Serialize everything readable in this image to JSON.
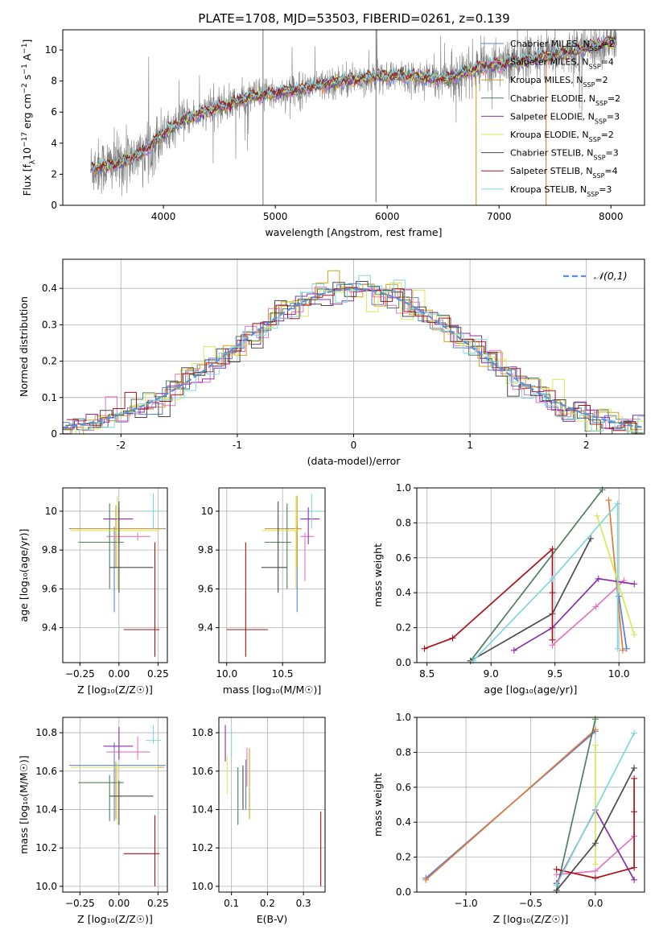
{
  "figure_title": "PLATE=1708, MJD=53503, FIBERID=0261, z=0.139",
  "colors": {
    "Chabrier MILES": "#5b7fd6",
    "Salpeter MILES": "#e377c2",
    "Kroupa MILES": "#d4a020",
    "Chabrier ELODIE": "#4f7f5f",
    "Salpeter ELODIE": "#8b2fa8",
    "Kroupa ELODIE": "#d8e85a",
    "Chabrier STELIB": "#4a4a4a",
    "Salpeter STELIB": "#a8141c",
    "Kroupa STELIB": "#7fd8dc",
    "orange": "#e07b39",
    "data": "#808080",
    "gauss": "#5b8fd6"
  },
  "chart_data": [
    {
      "id": "spectrum",
      "type": "line",
      "xlabel": "wavelength [Angstrom, rest frame]",
      "ylabel_parts": [
        "Flux [f",
        "λ",
        "10",
        "−17",
        " erg cm",
        "−2",
        " s",
        "−1",
        " A",
        "−1",
        "]"
      ],
      "xlim": [
        3100,
        8300
      ],
      "ylim": [
        0,
        11.3
      ],
      "xticks": [
        4000,
        5000,
        6000,
        7000,
        8000
      ],
      "yticks": [
        0,
        2,
        4,
        6,
        8,
        10
      ],
      "grid": false,
      "legend_position": "top-right",
      "legend": [
        {
          "label": "Chabrier MILES, N",
          "sub": "SSP",
          "suffix": "=2",
          "color_key": "Chabrier MILES"
        },
        {
          "label": "Salpeter MILES, N",
          "sub": "SSP",
          "suffix": "=4",
          "color_key": "Salpeter MILES"
        },
        {
          "label": "Kroupa MILES, N",
          "sub": "SSP",
          "suffix": "=2",
          "color_key": "Kroupa MILES"
        },
        {
          "label": "Chabrier ELODIE, N",
          "sub": "SSP",
          "suffix": "=2",
          "color_key": "Chabrier ELODIE"
        },
        {
          "label": "Salpeter ELODIE, N",
          "sub": "SSP",
          "suffix": "=3",
          "color_key": "Salpeter ELODIE"
        },
        {
          "label": "Kroupa ELODIE, N",
          "sub": "SSP",
          "suffix": "=2",
          "color_key": "Kroupa ELODIE"
        },
        {
          "label": "Chabrier STELIB, N",
          "sub": "SSP",
          "suffix": "=3",
          "color_key": "Chabrier STELIB"
        },
        {
          "label": "Salpeter STELIB, N",
          "sub": "SSP",
          "suffix": "=4",
          "color_key": "Salpeter STELIB"
        },
        {
          "label": "Kroupa STELIB, N",
          "sub": "SSP",
          "suffix": "=3",
          "color_key": "Kroupa STELIB"
        }
      ],
      "continuum": {
        "x": [
          3350,
          3600,
          3800,
          4000,
          4200,
          4500,
          4800,
          5000,
          5300,
          5600,
          5900,
          6200,
          6500,
          6800,
          7000,
          7300,
          7600,
          8050
        ],
        "y": [
          2.4,
          2.7,
          3.3,
          4.6,
          5.6,
          6.3,
          7.0,
          7.2,
          7.6,
          8.0,
          8.3,
          8.3,
          8.1,
          8.8,
          9.1,
          9.4,
          9.8,
          10.6
        ]
      },
      "vlines": [
        {
          "x": 4890,
          "y0": 0,
          "y1": 11.3,
          "color_key": "data"
        },
        {
          "x": 5900,
          "y0": 0.2,
          "y1": 11.3,
          "color_key": "data"
        },
        {
          "x": 6795,
          "y0": 0,
          "y1": 8.4,
          "color_key": "Kroupa MILES"
        },
        {
          "x": 7420,
          "y0": 0,
          "y1": 9.8,
          "color_key": "orange"
        }
      ]
    },
    {
      "id": "residuals",
      "type": "histogram",
      "xlabel": "(data-model)/error",
      "ylabel": "Normed distribution",
      "xlim": [
        -2.5,
        2.5
      ],
      "ylim": [
        0,
        0.48
      ],
      "xticks": [
        -2,
        -1,
        0,
        1,
        2
      ],
      "yticks": [
        0,
        0.1,
        0.2,
        0.3,
        0.4
      ],
      "grid": true,
      "legend_position": "top-right",
      "legend_label": "𝒩(0,1)",
      "gauss": {
        "mu": 0,
        "sigma": 1
      }
    },
    {
      "id": "age_vs_Z",
      "type": "errorbar",
      "xlabel": "Z [log₁₀(Z/Z☉)]",
      "ylabel": "age  [log₁₀(age/yr)]",
      "xlim": [
        -0.36,
        0.31
      ],
      "ylim": [
        9.22,
        10.12
      ],
      "xticks": [
        -0.25,
        0.0,
        0.25
      ],
      "xticklabels": [
        "−0.25",
        "0.00",
        "0.25"
      ],
      "yticks": [
        9.4,
        9.6,
        9.8,
        10.0
      ],
      "grid": true,
      "points": [
        {
          "key": "Chabrier MILES",
          "x": -0.03,
          "xerr": [
            0.29,
            0.33
          ],
          "y": 9.91,
          "yerr": [
            0.43,
            0.01
          ]
        },
        {
          "key": "Salpeter MILES",
          "x": 0.12,
          "xerr": [
            0.2,
            0.08
          ],
          "y": 9.87,
          "yerr": [
            0.02,
            0.02
          ]
        },
        {
          "key": "Kroupa MILES",
          "x": -0.02,
          "xerr": [
            0.29,
            0.31
          ],
          "y": 9.91,
          "yerr": [
            0.2,
            0.12
          ]
        },
        {
          "key": "Chabrier ELODIE",
          "x": -0.06,
          "xerr": [
            0.2,
            0.09
          ],
          "y": 9.84,
          "yerr": [
            0.24,
            0.2
          ]
        },
        {
          "key": "Salpeter ELODIE",
          "x": 0.0,
          "xerr": [
            0.1,
            0.09
          ],
          "y": 9.96,
          "yerr": [
            0.13,
            0.06
          ]
        },
        {
          "key": "Kroupa ELODIE",
          "x": -0.01,
          "xerr": [
            0.3,
            0.26
          ],
          "y": 9.9,
          "yerr": [
            0.3,
            0.18
          ]
        },
        {
          "key": "Chabrier STELIB",
          "x": 0.0,
          "xerr": [
            0.06,
            0.22
          ],
          "y": 9.71,
          "yerr": [
            0.13,
            0.34
          ]
        },
        {
          "key": "Salpeter STELIB",
          "x": 0.23,
          "xerr": [
            0.2,
            0.03
          ],
          "y": 9.39,
          "yerr": [
            0.14,
            0.45
          ]
        },
        {
          "key": "Kroupa STELIB",
          "x": 0.22,
          "xerr": [
            0.05,
            0.05
          ],
          "y": 10.0,
          "yerr": [
            0.09,
            0.09
          ]
        }
      ]
    },
    {
      "id": "age_vs_mass",
      "type": "errorbar",
      "xlabel": "mass [log₁₀(M/M☉)]",
      "ylabel": "",
      "xlim": [
        9.93,
        10.88
      ],
      "ylim": [
        9.22,
        10.12
      ],
      "xticks": [
        10.0,
        10.5
      ],
      "xticklabels": [
        "10.0",
        "10.5"
      ],
      "yticks": [
        9.4,
        9.6,
        9.8,
        10.0
      ],
      "grid": true,
      "points": [
        {
          "key": "Chabrier MILES",
          "x": 10.63,
          "xerr": [
            0.29,
            0.04
          ],
          "y": 9.91,
          "yerr": [
            0.43,
            0.01
          ]
        },
        {
          "key": "Salpeter MILES",
          "x": 10.7,
          "xerr": [
            0.04,
            0.08
          ],
          "y": 9.87,
          "yerr": [
            0.23,
            0.02
          ]
        },
        {
          "key": "Kroupa MILES",
          "x": 10.63,
          "xerr": [
            0.29,
            0.04
          ],
          "y": 9.91,
          "yerr": [
            0.2,
            0.17
          ]
        },
        {
          "key": "Chabrier ELODIE",
          "x": 10.54,
          "xerr": [
            0.2,
            0.04
          ],
          "y": 9.84,
          "yerr": [
            0.24,
            0.2
          ]
        },
        {
          "key": "Salpeter ELODIE",
          "x": 10.73,
          "xerr": [
            0.07,
            0.1
          ],
          "y": 9.96,
          "yerr": [
            0.13,
            0.06
          ]
        },
        {
          "key": "Kroupa ELODIE",
          "x": 10.62,
          "xerr": [
            0.3,
            0.02
          ],
          "y": 9.9,
          "yerr": [
            0.3,
            0.18
          ]
        },
        {
          "key": "Chabrier STELIB",
          "x": 10.46,
          "xerr": [
            0.15,
            0.08
          ],
          "y": 9.71,
          "yerr": [
            0.13,
            0.34
          ]
        },
        {
          "key": "Salpeter STELIB",
          "x": 10.17,
          "xerr": [
            0.17,
            0.2
          ],
          "y": 9.39,
          "yerr": [
            0.14,
            0.45
          ]
        },
        {
          "key": "Kroupa STELIB",
          "x": 10.76,
          "xerr": [
            0.02,
            0.08
          ],
          "y": 10.0,
          "yerr": [
            0.09,
            0.09
          ]
        }
      ]
    },
    {
      "id": "mass_weight_vs_age",
      "type": "line",
      "xlabel": "age  [log₁₀(age/yr)]",
      "ylabel": "mass weight",
      "xlim": [
        8.42,
        10.2
      ],
      "ylim": [
        0,
        1
      ],
      "xticks": [
        8.5,
        9.0,
        9.5,
        10.0
      ],
      "xticklabels": [
        "8.5",
        "9.0",
        "9.5",
        "10.0"
      ],
      "yticks": [
        0,
        0.2,
        0.4,
        0.6,
        0.8,
        1.0
      ],
      "yticklabels": [
        "0.0",
        "0.2",
        "0.4",
        "0.6",
        "0.8",
        "1.0"
      ],
      "grid": true,
      "series": [
        {
          "key": "Salpeter MILES",
          "x": [
            9.48,
            9.82,
            10.04
          ],
          "y": [
            0.1,
            0.32,
            0.47
          ]
        },
        {
          "key": "Chabrier MILES",
          "x": [
            10.0,
            10.06
          ],
          "y": [
            0.38,
            0.08
          ]
        },
        {
          "key": "orange",
          "x": [
            9.92,
            10.03
          ],
          "y": [
            0.93,
            0.07
          ]
        },
        {
          "key": "Chabrier ELODIE",
          "x": [
            8.84,
            9.87
          ],
          "y": [
            0.01,
            0.99
          ]
        },
        {
          "key": "Salpeter ELODIE",
          "x": [
            9.18,
            9.48,
            9.84,
            10.12
          ],
          "y": [
            0.07,
            0.2,
            0.48,
            0.45
          ]
        },
        {
          "key": "Kroupa ELODIE",
          "x": [
            9.83,
            10.12
          ],
          "y": [
            0.84,
            0.16
          ]
        },
        {
          "key": "Chabrier STELIB",
          "x": [
            8.84,
            9.48,
            9.78
          ],
          "y": [
            0.01,
            0.28,
            0.71
          ]
        },
        {
          "key": "Salpeter STELIB",
          "x": [
            8.48,
            8.7,
            9.48,
            9.48,
            9.48
          ],
          "y": [
            0.08,
            0.14,
            0.65,
            0.4,
            0.13
          ]
        },
        {
          "key": "Kroupa STELIB",
          "x": [
            8.86,
            9.48,
            9.99,
            9.99
          ],
          "y": [
            0.01,
            0.48,
            0.91,
            0.08
          ]
        }
      ]
    },
    {
      "id": "mass_vs_Z",
      "type": "errorbar",
      "xlabel": "Z [log₁₀(Z/Z☉)]",
      "ylabel": "mass [log₁₀(M/M☉)]",
      "xlim": [
        -0.36,
        0.31
      ],
      "ylim": [
        9.97,
        10.88
      ],
      "xticks": [
        -0.25,
        0.0,
        0.25
      ],
      "xticklabels": [
        "−0.25",
        "0.00",
        "0.25"
      ],
      "yticks": [
        10.0,
        10.2,
        10.4,
        10.6,
        10.8
      ],
      "yticklabels": [
        "10.0",
        "10.2",
        "10.4",
        "10.6",
        "10.8"
      ],
      "grid": true,
      "points": [
        {
          "key": "Chabrier MILES",
          "x": -0.03,
          "xerr": [
            0.29,
            0.33
          ],
          "y": 10.63,
          "yerr": [
            0.29,
            0.12
          ]
        },
        {
          "key": "Salpeter MILES",
          "x": 0.12,
          "xerr": [
            0.2,
            0.08
          ],
          "y": 10.7,
          "yerr": [
            0.04,
            0.08
          ]
        },
        {
          "key": "Kroupa MILES",
          "x": -0.02,
          "xerr": [
            0.29,
            0.31
          ],
          "y": 10.62,
          "yerr": [
            0.27,
            0.03
          ]
        },
        {
          "key": "Chabrier ELODIE",
          "x": -0.06,
          "xerr": [
            0.2,
            0.09
          ],
          "y": 10.54,
          "yerr": [
            0.2,
            0.04
          ]
        },
        {
          "key": "Salpeter ELODIE",
          "x": 0.0,
          "xerr": [
            0.1,
            0.09
          ],
          "y": 10.73,
          "yerr": [
            0.07,
            0.1
          ]
        },
        {
          "key": "Kroupa ELODIE",
          "x": -0.01,
          "xerr": [
            0.3,
            0.26
          ],
          "y": 10.62,
          "yerr": [
            0.3,
            0.02
          ]
        },
        {
          "key": "Chabrier STELIB",
          "x": 0.0,
          "xerr": [
            0.06,
            0.22
          ],
          "y": 10.47,
          "yerr": [
            0.15,
            0.08
          ]
        },
        {
          "key": "Salpeter STELIB",
          "x": 0.23,
          "xerr": [
            0.2,
            0.03
          ],
          "y": 10.17,
          "yerr": [
            0.17,
            0.2
          ]
        },
        {
          "key": "Kroupa STELIB",
          "x": 0.22,
          "xerr": [
            0.05,
            0.05
          ],
          "y": 10.76,
          "yerr": [
            0.02,
            0.08
          ]
        }
      ]
    },
    {
      "id": "mass_vs_ebv",
      "type": "errorbar",
      "xlabel": "E(B-V)",
      "ylabel": "",
      "xlim": [
        0.065,
        0.36
      ],
      "ylim": [
        9.97,
        10.88
      ],
      "xticks": [
        0.1,
        0.2,
        0.3
      ],
      "xticklabels": [
        "0.1",
        "0.2",
        "0.3"
      ],
      "yticks": [
        10.0,
        10.2,
        10.4,
        10.6,
        10.8
      ],
      "yticklabels": [
        "10.0",
        "10.2",
        "10.4",
        "10.6",
        "10.8"
      ],
      "grid": true,
      "points": [
        {
          "key": "Salpeter ELODIE",
          "x": 0.083,
          "xerr": [
            0,
            0
          ],
          "y": 10.73,
          "yerr": [
            0.08,
            0.11
          ]
        },
        {
          "key": "Kroupa ELODIE",
          "x": 0.088,
          "xerr": [
            0,
            0
          ],
          "y": 10.62,
          "yerr": [
            0.14,
            0.06
          ]
        },
        {
          "key": "Kroupa STELIB",
          "x": 0.1,
          "xerr": [
            0,
            0
          ],
          "y": 10.76,
          "yerr": [
            0.09,
            0.06
          ]
        },
        {
          "key": "Chabrier ELODIE",
          "x": 0.118,
          "xerr": [
            0,
            0
          ],
          "y": 10.54,
          "yerr": [
            0.22,
            0.08
          ]
        },
        {
          "key": "Chabrier STELIB",
          "x": 0.132,
          "xerr": [
            0,
            0
          ],
          "y": 10.46,
          "yerr": [
            0.06,
            0.17
          ]
        },
        {
          "key": "Chabrier MILES",
          "x": 0.14,
          "xerr": [
            0,
            0
          ],
          "y": 10.63,
          "yerr": [
            0.23,
            0.03
          ]
        },
        {
          "key": "Salpeter MILES",
          "x": 0.143,
          "xerr": [
            0,
            0
          ],
          "y": 10.62,
          "yerr": [
            0.1,
            0.1
          ]
        },
        {
          "key": "Kroupa MILES",
          "x": 0.15,
          "xerr": [
            0,
            0
          ],
          "y": 10.54,
          "yerr": [
            0.19,
            0.18
          ]
        },
        {
          "key": "Salpeter STELIB",
          "x": 0.348,
          "xerr": [
            0,
            0
          ],
          "y": 10.2,
          "yerr": [
            0.2,
            0.19
          ]
        }
      ]
    },
    {
      "id": "mass_weight_vs_Z",
      "type": "line",
      "xlabel": "Z [log₁₀(Z/Z☉)]",
      "ylabel": "mass weight",
      "xlim": [
        -1.38,
        0.38
      ],
      "ylim": [
        0,
        1
      ],
      "xticks": [
        -1.0,
        -0.5,
        0.0
      ],
      "xticklabels": [
        "−1.0",
        "−0.5",
        "0.0"
      ],
      "yticks": [
        0,
        0.2,
        0.4,
        0.6,
        0.8,
        1.0
      ],
      "yticklabels": [
        "0.0",
        "0.2",
        "0.4",
        "0.6",
        "0.8",
        "1.0"
      ],
      "grid": true,
      "series": [
        {
          "key": "Chabrier MILES",
          "x": [
            -1.31,
            0.0
          ],
          "y": [
            0.08,
            0.92
          ]
        },
        {
          "key": "orange",
          "x": [
            -1.31,
            0.0
          ],
          "y": [
            0.07,
            0.93
          ]
        },
        {
          "key": "Salpeter MILES",
          "x": [
            -0.3,
            0.0,
            0.3
          ],
          "y": [
            0.1,
            0.12,
            0.32
          ]
        },
        {
          "key": "Chabrier ELODIE",
          "x": [
            -0.3,
            0.0
          ],
          "y": [
            0.01,
            0.99
          ]
        },
        {
          "key": "Salpeter ELODIE",
          "x": [
            -0.3,
            0.0,
            0.3
          ],
          "y": [
            0.05,
            0.47,
            0.07
          ]
        },
        {
          "key": "Kroupa ELODIE",
          "x": [
            0.0,
            0.0
          ],
          "y": [
            0.16,
            0.84
          ]
        },
        {
          "key": "Chabrier STELIB",
          "x": [
            -0.3,
            0.0,
            0.3
          ],
          "y": [
            0.01,
            0.28,
            0.71
          ]
        },
        {
          "key": "Salpeter STELIB",
          "x": [
            -0.3,
            0.0,
            0.3,
            0.3,
            0.3
          ],
          "y": [
            0.13,
            0.08,
            0.14,
            0.46,
            0.65
          ]
        },
        {
          "key": "Kroupa STELIB",
          "x": [
            -0.3,
            0.3
          ],
          "y": [
            0.04,
            0.91
          ]
        }
      ]
    }
  ]
}
